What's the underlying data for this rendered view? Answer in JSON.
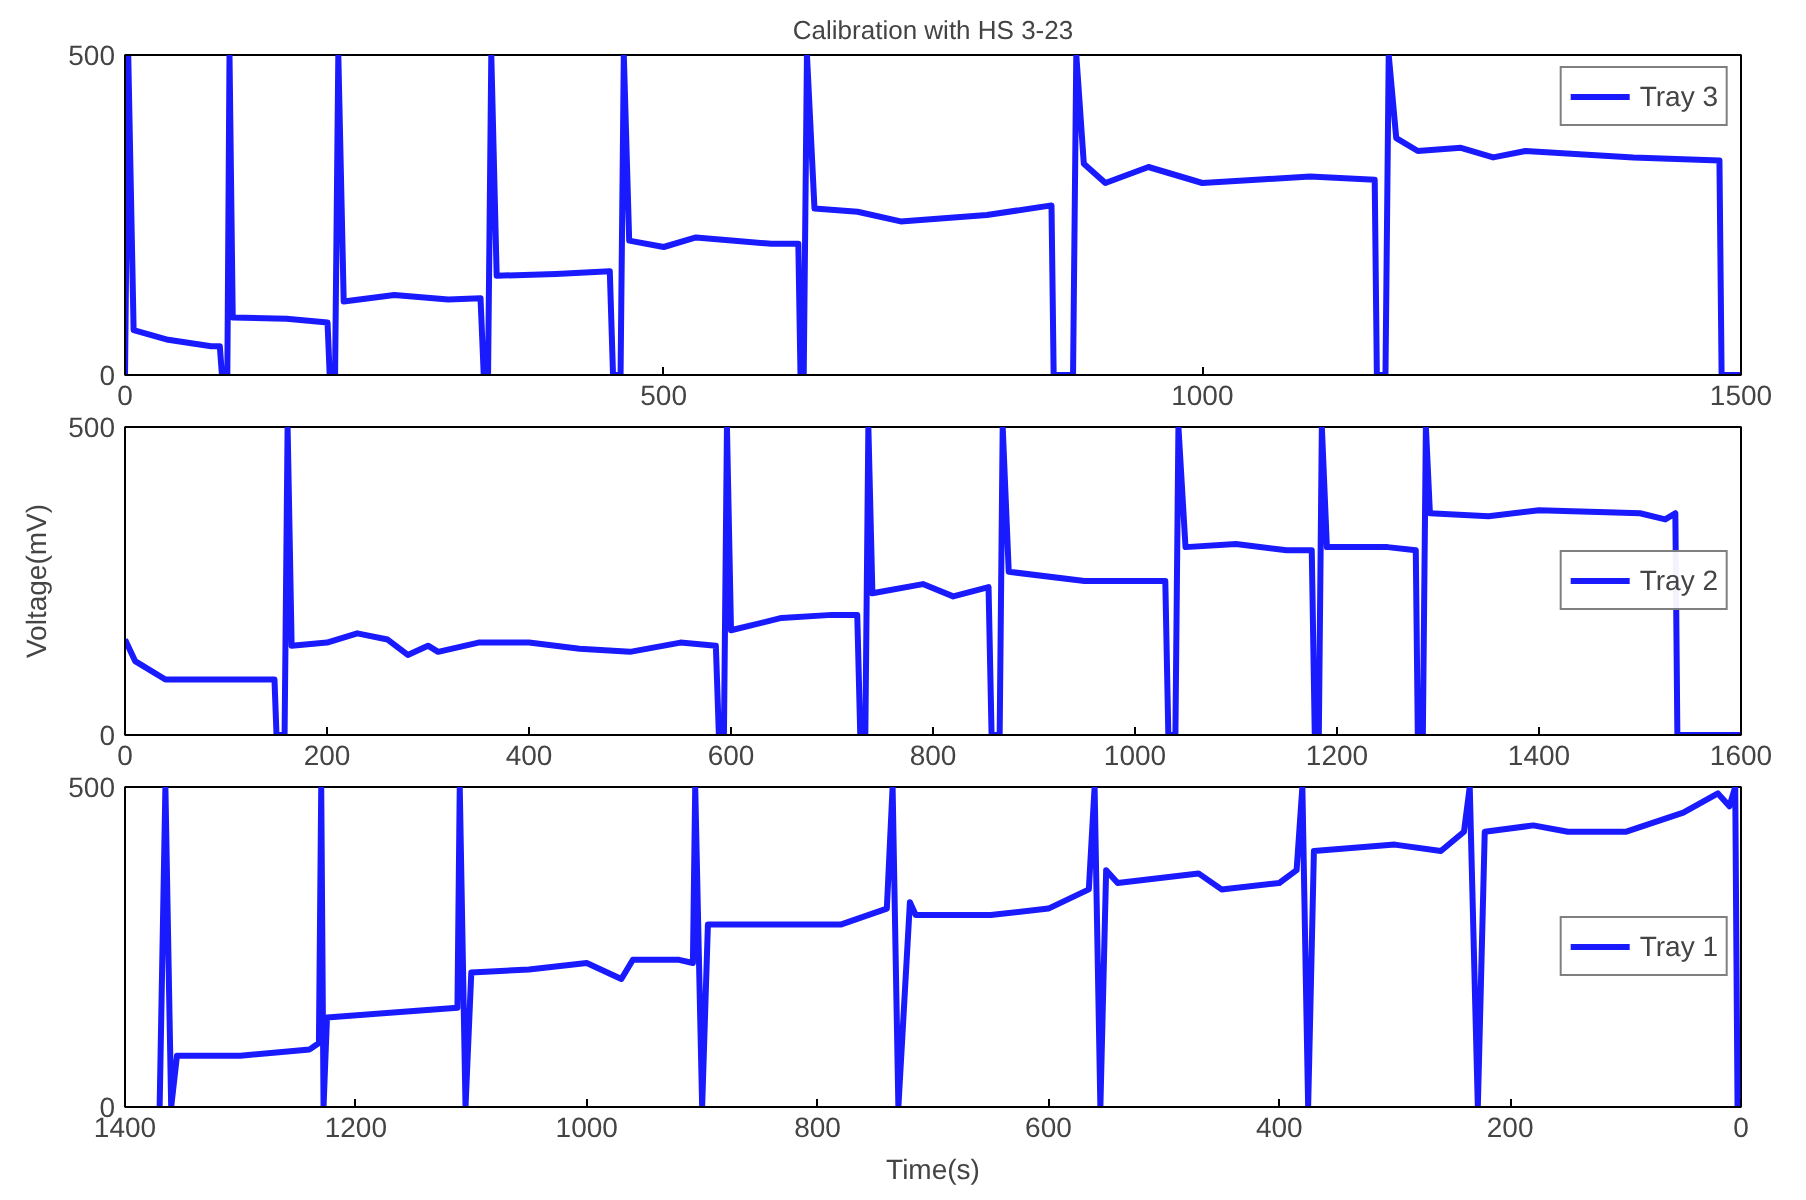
{
  "chart_data": [
    {
      "type": "line",
      "title": "Calibration with HS 3-23",
      "xlim": [
        0,
        1500
      ],
      "ylim": [
        0,
        500
      ],
      "xticks": [
        0,
        500,
        1000,
        1500
      ],
      "yticks": [
        0,
        500
      ],
      "grid": false,
      "legend": "top right",
      "series": [
        {
          "name": "Tray 3",
          "color": "#1a1aff",
          "x": [
            0,
            3,
            8,
            40,
            80,
            88,
            90,
            95,
            97,
            100,
            150,
            188,
            190,
            195,
            198,
            203,
            250,
            300,
            330,
            333,
            337,
            340,
            345,
            400,
            450,
            453,
            460,
            463,
            468,
            500,
            530,
            600,
            625,
            627,
            630,
            633,
            640,
            680,
            720,
            800,
            860,
            862,
            880,
            883,
            890,
            910,
            950,
            1000,
            1050,
            1100,
            1160,
            1162,
            1170,
            1173,
            1180,
            1200,
            1240,
            1270,
            1300,
            1400,
            1480,
            1482,
            1500
          ],
          "values": [
            0,
            500,
            70,
            55,
            45,
            45,
            0,
            0,
            500,
            90,
            88,
            82,
            0,
            0,
            500,
            115,
            125,
            118,
            120,
            0,
            0,
            500,
            155,
            158,
            162,
            0,
            0,
            500,
            210,
            200,
            215,
            205,
            205,
            0,
            0,
            500,
            260,
            255,
            240,
            250,
            265,
            0,
            0,
            500,
            330,
            300,
            325,
            300,
            305,
            310,
            305,
            0,
            0,
            500,
            370,
            350,
            355,
            340,
            350,
            340,
            335,
            0,
            0
          ]
        }
      ]
    },
    {
      "type": "line",
      "ylabel": "Voltage(mV)",
      "xlim": [
        0,
        1600
      ],
      "ylim": [
        0,
        500
      ],
      "xticks": [
        0,
        200,
        400,
        600,
        800,
        1000,
        1200,
        1400,
        1600
      ],
      "yticks": [
        0,
        500
      ],
      "grid": false,
      "legend": "right",
      "series": [
        {
          "name": "Tray 2",
          "color": "#1a1aff",
          "x": [
            0,
            10,
            40,
            100,
            148,
            150,
            158,
            161,
            165,
            200,
            230,
            260,
            280,
            300,
            310,
            350,
            400,
            450,
            500,
            550,
            585,
            588,
            593,
            596,
            600,
            650,
            700,
            725,
            728,
            733,
            736,
            740,
            790,
            820,
            855,
            858,
            866,
            869,
            875,
            950,
            1030,
            1033,
            1040,
            1043,
            1050,
            1100,
            1150,
            1175,
            1178,
            1182,
            1185,
            1190,
            1250,
            1278,
            1280,
            1285,
            1288,
            1292,
            1350,
            1400,
            1500,
            1525,
            1535,
            1537,
            1600
          ],
          "values": [
            155,
            120,
            90,
            90,
            90,
            0,
            0,
            500,
            145,
            150,
            165,
            155,
            130,
            145,
            135,
            150,
            150,
            140,
            135,
            150,
            145,
            0,
            0,
            500,
            170,
            190,
            195,
            195,
            0,
            0,
            500,
            230,
            245,
            225,
            240,
            0,
            0,
            500,
            265,
            250,
            250,
            0,
            0,
            500,
            305,
            310,
            300,
            300,
            0,
            0,
            500,
            305,
            305,
            300,
            0,
            0,
            500,
            360,
            355,
            365,
            360,
            350,
            360,
            0,
            0
          ]
        }
      ]
    },
    {
      "type": "line",
      "xlabel": "Time(s)",
      "xlim": [
        1400,
        0
      ],
      "ylim": [
        0,
        500
      ],
      "xticks": [
        1400,
        1200,
        1000,
        800,
        600,
        400,
        200,
        0
      ],
      "yticks": [
        0,
        500
      ],
      "grid": false,
      "legend": "right",
      "series": [
        {
          "name": "Tray 1",
          "color": "#1a1aff",
          "x": [
            1370,
            1365,
            1360,
            1355,
            1300,
            1240,
            1232,
            1230,
            1228,
            1225,
            1150,
            1112,
            1110,
            1105,
            1100,
            1050,
            1000,
            970,
            960,
            920,
            908,
            906,
            900,
            895,
            850,
            780,
            740,
            735,
            730,
            720,
            715,
            650,
            600,
            565,
            560,
            555,
            550,
            540,
            470,
            450,
            400,
            385,
            380,
            375,
            370,
            300,
            260,
            240,
            235,
            228,
            222,
            180,
            150,
            100,
            50,
            20,
            10,
            5,
            3
          ],
          "values": [
            0,
            500,
            0,
            80,
            80,
            90,
            100,
            500,
            0,
            140,
            150,
            155,
            500,
            0,
            210,
            215,
            225,
            200,
            230,
            230,
            225,
            500,
            0,
            285,
            285,
            285,
            310,
            500,
            0,
            320,
            300,
            300,
            310,
            340,
            500,
            0,
            370,
            350,
            365,
            340,
            350,
            370,
            500,
            0,
            400,
            410,
            400,
            430,
            500,
            0,
            430,
            440,
            430,
            430,
            460,
            490,
            470,
            500,
            0
          ]
        }
      ]
    }
  ]
}
